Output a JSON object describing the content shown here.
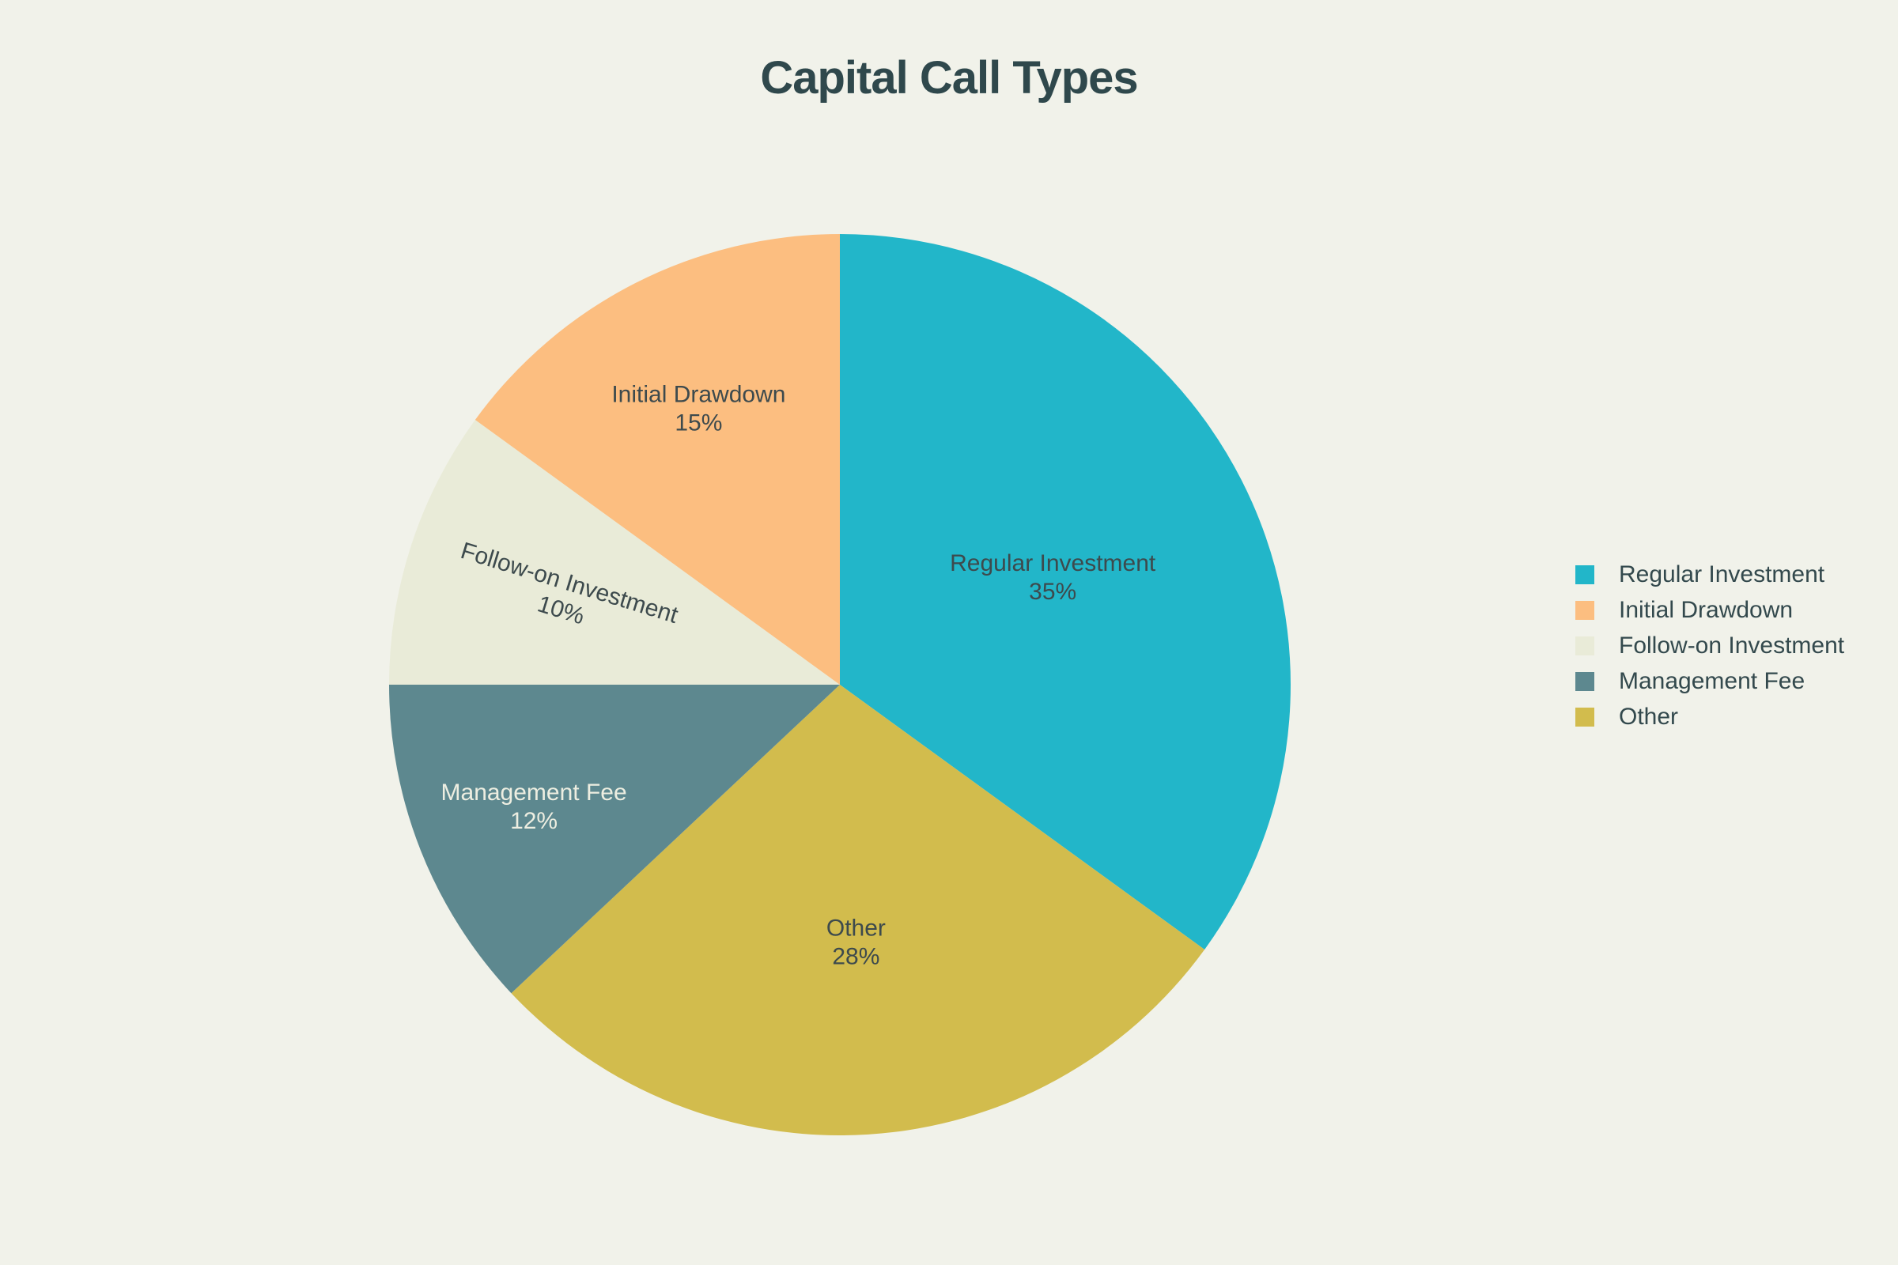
{
  "page": {
    "background_color": "#f1f2ea"
  },
  "chart_data": {
    "type": "pie",
    "title": "Capital Call Types",
    "title_color": "#2f484c",
    "unit": "%",
    "slices": [
      {
        "label": "Regular Investment",
        "value": 35,
        "pct_label": "35%",
        "color": "#22b6c9",
        "label_text_color": "#3d4a4d"
      },
      {
        "label": "Initial Drawdown",
        "value": 15,
        "pct_label": "15%",
        "color": "#fcbe80",
        "label_text_color": "#3d4a4d"
      },
      {
        "label": "Follow-on Investment",
        "value": 10,
        "pct_label": "10%",
        "color": "#e9ebd8",
        "label_text_color": "#3d4a4d"
      },
      {
        "label": "Management Fee",
        "value": 12,
        "pct_label": "12%",
        "color": "#5d888f",
        "label_text_color": "#edeee1"
      },
      {
        "label": "Other",
        "value": 28,
        "pct_label": "28%",
        "color": "#d2bc4d",
        "label_text_color": "#3d4a4d"
      }
    ],
    "start_position": "12-o-clock",
    "clockwise_order": [
      "Regular Investment",
      "Other",
      "Management Fee",
      "Follow-on Investment",
      "Initial Drawdown"
    ],
    "legend": {
      "position": "right",
      "text_color": "#33494d",
      "items": [
        "Regular Investment",
        "Initial Drawdown",
        "Follow-on Investment",
        "Management Fee",
        "Other"
      ]
    }
  }
}
